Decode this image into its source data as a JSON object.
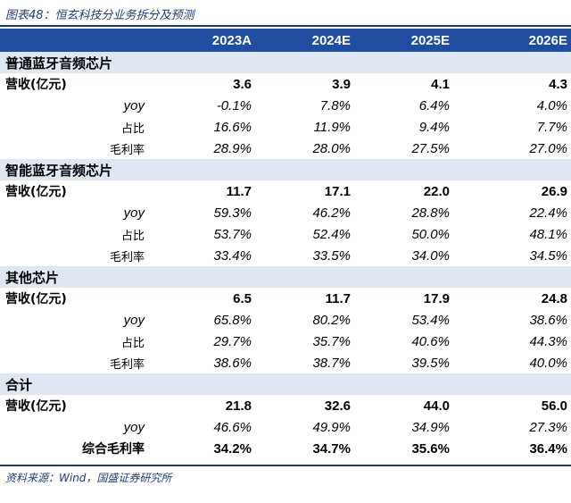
{
  "title": "图表48：恒玄科技分业务拆分及预测",
  "source": "资料来源：Wind，国盛证券研究所",
  "header": {
    "cols": [
      "2023A",
      "2024E",
      "2025E",
      "2026E"
    ]
  },
  "sections": [
    {
      "name": "普通蓝牙音频芯片",
      "revenue_label": "营收(亿元)",
      "revenue": [
        "3.6",
        "3.9",
        "4.1",
        "4.3"
      ],
      "yoy_label": "yoy",
      "yoy": [
        "-0.1%",
        "7.8%",
        "6.4%",
        "4.0%"
      ],
      "share_label": "占比",
      "share": [
        "16.6%",
        "11.9%",
        "9.4%",
        "7.7%"
      ],
      "margin_label": "毛利率",
      "margin": [
        "28.9%",
        "28.0%",
        "27.5%",
        "27.0%"
      ]
    },
    {
      "name": "智能蓝牙音频芯片",
      "revenue_label": "营收(亿元)",
      "revenue": [
        "11.7",
        "17.1",
        "22.0",
        "26.9"
      ],
      "yoy_label": "yoy",
      "yoy": [
        "59.3%",
        "46.2%",
        "28.8%",
        "22.4%"
      ],
      "share_label": "占比",
      "share": [
        "53.7%",
        "52.4%",
        "50.0%",
        "48.1%"
      ],
      "margin_label": "毛利率",
      "margin": [
        "33.4%",
        "33.5%",
        "34.0%",
        "34.5%"
      ]
    },
    {
      "name": "其他芯片",
      "revenue_label": "营收(亿元)",
      "revenue": [
        "6.5",
        "11.7",
        "17.9",
        "24.8"
      ],
      "yoy_label": "yoy",
      "yoy": [
        "65.8%",
        "80.2%",
        "53.4%",
        "38.6%"
      ],
      "share_label": "占比",
      "share": [
        "29.7%",
        "35.7%",
        "40.6%",
        "44.3%"
      ],
      "margin_label": "毛利率",
      "margin": [
        "38.6%",
        "38.7%",
        "39.5%",
        "40.0%"
      ]
    }
  ],
  "total": {
    "name": "合计",
    "revenue_label": "营收(亿元)",
    "revenue": [
      "21.8",
      "32.6",
      "44.0",
      "56.0"
    ],
    "yoy_label": "yoy",
    "yoy": [
      "46.6%",
      "49.9%",
      "34.9%",
      "27.3%"
    ],
    "margin_label": "综合毛利率",
    "margin": [
      "34.2%",
      "34.7%",
      "35.6%",
      "36.4%"
    ]
  }
}
